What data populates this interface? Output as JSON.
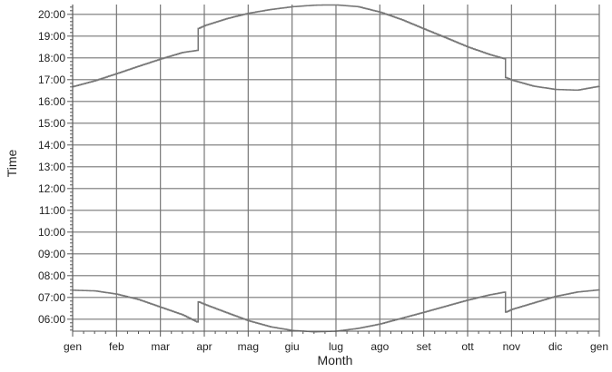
{
  "chart_data": {
    "type": "line",
    "xlabel": "Month",
    "ylabel": "Time",
    "x_tick_labels": [
      "gen",
      "feb",
      "mar",
      "apr",
      "mag",
      "giu",
      "lug",
      "ago",
      "set",
      "ott",
      "nov",
      "dic",
      "gen"
    ],
    "y_tick_labels": [
      "06:00",
      "07:00",
      "08:00",
      "09:00",
      "10:00",
      "11:00",
      "12:00",
      "13:00",
      "14:00",
      "15:00",
      "16:00",
      "17:00",
      "18:00",
      "19:00",
      "20:00"
    ],
    "xlim": [
      0,
      12
    ],
    "ylim": [
      5.45,
      20.45
    ],
    "grid": true,
    "colors": {
      "line": "#777777",
      "grid": "#777777",
      "axis": "#555555"
    },
    "series": [
      {
        "x": [
          0,
          0.5,
          1,
          1.5,
          2,
          2.5,
          2.85,
          2.86,
          3,
          3.5,
          4,
          4.5,
          5,
          5.5,
          5.75,
          6,
          6.5,
          7,
          7.5,
          8,
          8.5,
          9,
          9.5,
          9.85,
          9.86,
          10,
          10.5,
          11,
          11.5,
          12
        ],
        "y": [
          16.68,
          16.95,
          17.28,
          17.62,
          17.95,
          18.25,
          18.35,
          19.35,
          19.48,
          19.8,
          20.05,
          20.22,
          20.35,
          20.42,
          20.43,
          20.43,
          20.35,
          20.1,
          19.75,
          19.33,
          18.92,
          18.5,
          18.15,
          17.95,
          17.1,
          16.98,
          16.7,
          16.55,
          16.52,
          16.7
        ]
      },
      {
        "x": [
          0,
          0.5,
          1,
          1.5,
          2,
          2.5,
          2.85,
          2.86,
          3,
          3.5,
          4,
          4.5,
          5,
          5.5,
          6,
          6.5,
          7,
          7.5,
          8,
          8.5,
          9,
          9.5,
          9.85,
          9.86,
          10,
          10.5,
          11,
          11.5,
          12
        ],
        "y": [
          7.33,
          7.3,
          7.15,
          6.9,
          6.55,
          6.2,
          5.85,
          6.8,
          6.68,
          6.3,
          5.93,
          5.65,
          5.48,
          5.42,
          5.45,
          5.58,
          5.78,
          6.05,
          6.32,
          6.6,
          6.88,
          7.12,
          7.25,
          6.32,
          6.45,
          6.75,
          7.05,
          7.25,
          7.35
        ]
      }
    ]
  }
}
